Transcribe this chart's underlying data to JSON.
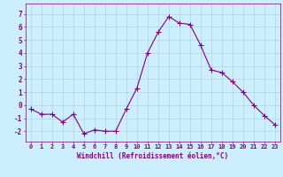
{
  "x": [
    0,
    1,
    2,
    3,
    4,
    5,
    6,
    7,
    8,
    9,
    10,
    11,
    12,
    13,
    14,
    15,
    16,
    17,
    18,
    19,
    20,
    21,
    22,
    23
  ],
  "y": [
    -0.3,
    -0.7,
    -0.7,
    -1.3,
    -0.7,
    -2.2,
    -1.9,
    -2.0,
    -2.0,
    -0.3,
    1.3,
    4.0,
    5.6,
    6.8,
    6.3,
    6.2,
    4.6,
    2.7,
    2.5,
    1.8,
    1.0,
    0.0,
    -0.8,
    -1.5
  ],
  "line_color": "#800080",
  "marker": "+",
  "marker_size": 4,
  "bg_color": "#cceeff",
  "grid_color": "#aacccc",
  "xlabel": "Windchill (Refroidissement éolien,°C)",
  "xlim": [
    -0.5,
    23.5
  ],
  "ylim": [
    -2.8,
    7.8
  ],
  "yticks": [
    -2,
    -1,
    0,
    1,
    2,
    3,
    4,
    5,
    6,
    7
  ],
  "xticks": [
    0,
    1,
    2,
    3,
    4,
    5,
    6,
    7,
    8,
    9,
    10,
    11,
    12,
    13,
    14,
    15,
    16,
    17,
    18,
    19,
    20,
    21,
    22,
    23
  ],
  "tick_color": "#800080",
  "label_color": "#800080",
  "line_width": 0.8,
  "tick_fontsize": 5,
  "xlabel_fontsize": 5.5,
  "spine_color": "#800080"
}
